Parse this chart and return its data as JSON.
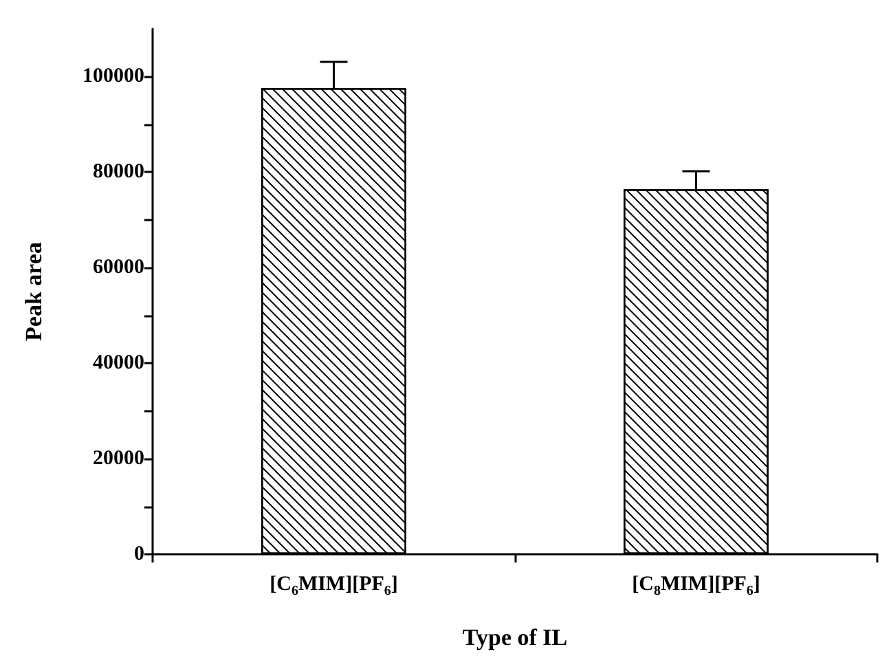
{
  "chart_data": {
    "type": "bar",
    "xlabel": "Type of IL",
    "ylabel": "Peak area",
    "categories": [
      "[C$_{6}$MIM][PF$_{6}$]",
      "[C$_{8}$MIM][PF$_{6}$]"
    ],
    "values": [
      97600,
      76400
    ],
    "errors": [
      5500,
      3800
    ],
    "color": "#ffffff",
    "ylim": [
      0,
      110000
    ],
    "yticks": [
      0,
      {
        "value": 10000,
        "label": null
      },
      20000,
      {
        "value": 30000,
        "label": null
      },
      40000,
      {
        "value": 50000,
        "label": null
      },
      60000,
      {
        "value": 70000,
        "label": null
      },
      80000,
      {
        "value": 90000,
        "label": null
      },
      100000
    ],
    "grid": false
  }
}
